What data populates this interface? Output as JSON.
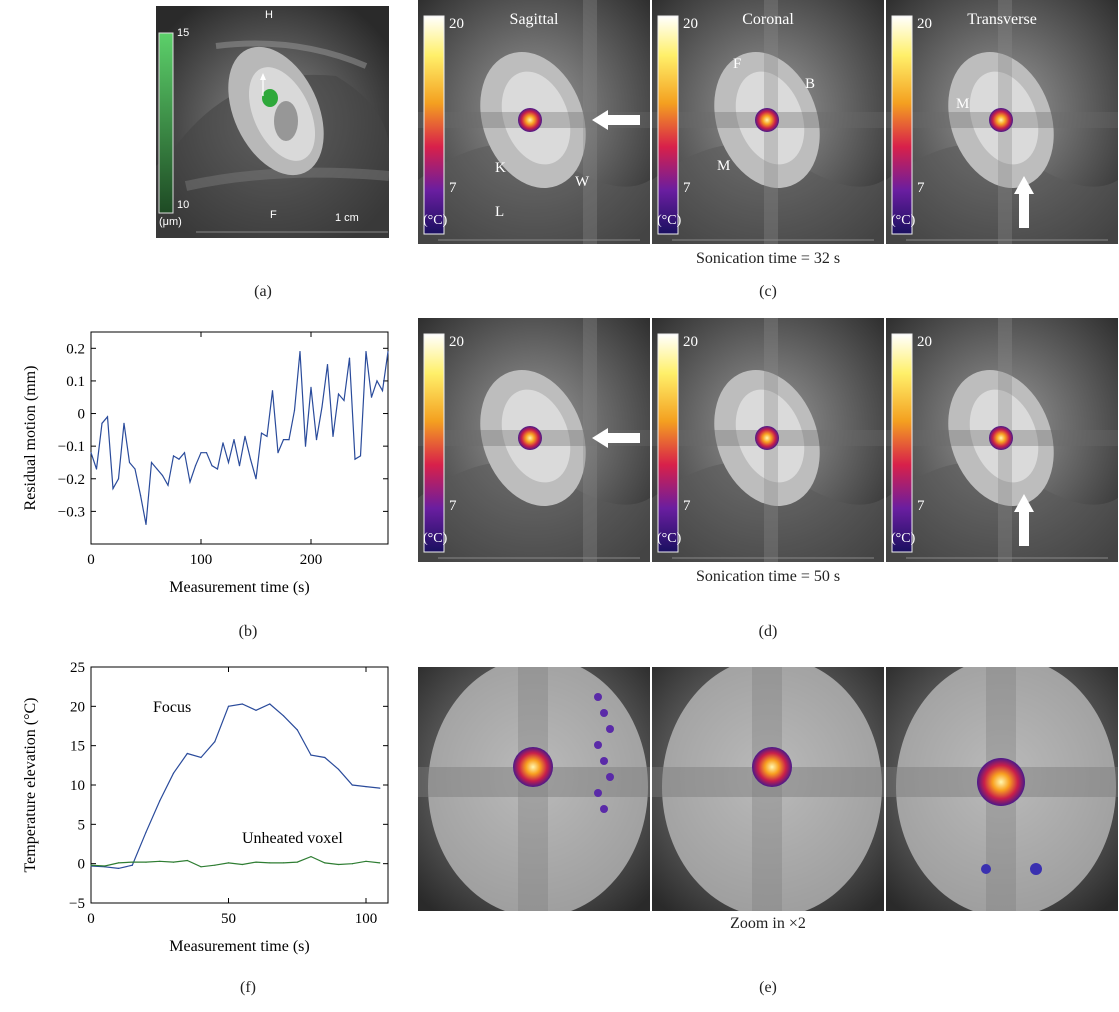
{
  "panel_a": {
    "label": "(a)",
    "top_marker": "H",
    "bottom_marker": "F",
    "scale_bar": "1 cm",
    "colorbar_max": "15",
    "colorbar_min": "10",
    "colorbar_unit": "(μm)",
    "colorbar_color": "#3fa64a"
  },
  "panel_c": {
    "label": "(c)",
    "caption": "Sonication time = 32 s",
    "views": [
      {
        "title": "Sagittal",
        "cb_max": "20",
        "cb_min": "7",
        "cb_unit": "(°C)",
        "letters": [
          "K",
          "W",
          "L"
        ]
      },
      {
        "title": "Coronal",
        "cb_max": "20",
        "cb_min": "7",
        "cb_unit": "(°C)",
        "letters": [
          "F",
          "B",
          "M"
        ]
      },
      {
        "title": "Transverse",
        "cb_max": "20",
        "cb_min": "7",
        "cb_unit": "(°C)",
        "letters": [
          "M"
        ]
      }
    ]
  },
  "panel_d": {
    "label": "(d)",
    "caption": "Sonication time = 50 s",
    "views": [
      {
        "cb_max": "20",
        "cb_min": "7",
        "cb_unit": "(°C)"
      },
      {
        "cb_max": "20",
        "cb_min": "7",
        "cb_unit": "(°C)"
      },
      {
        "cb_max": "20",
        "cb_min": "7",
        "cb_unit": "(°C)"
      }
    ]
  },
  "panel_e": {
    "label": "(e)",
    "caption": "Zoom in ×2"
  },
  "panel_b": {
    "label": "(b)"
  },
  "panel_f": {
    "label": "(f)"
  },
  "chart_data": [
    {
      "id": "b",
      "type": "line",
      "xlabel": "Measurement time (s)",
      "ylabel": "Residual motion (mm)",
      "xlim": [
        0,
        270
      ],
      "ylim": [
        -0.4,
        0.25
      ],
      "xticks": [
        0,
        100,
        200
      ],
      "yticks": [
        -0.3,
        -0.2,
        -0.1,
        0,
        0.1,
        0.2
      ],
      "line_color": "#2a4b9b",
      "series": [
        {
          "x": [
            0,
            5,
            10,
            15,
            20,
            25,
            30,
            35,
            40,
            45,
            50,
            55,
            60,
            65,
            70,
            75,
            80,
            85,
            90,
            95,
            100,
            105,
            110,
            115,
            120,
            125,
            130,
            135,
            140,
            145,
            150,
            155,
            160,
            165,
            170,
            175,
            180,
            185,
            190,
            195,
            200,
            205,
            210,
            215,
            220,
            225,
            230,
            235,
            240,
            245,
            250,
            255,
            260,
            265,
            270
          ],
          "y": [
            -0.12,
            -0.17,
            -0.03,
            -0.01,
            -0.23,
            -0.2,
            -0.03,
            -0.15,
            -0.17,
            -0.25,
            -0.34,
            -0.15,
            -0.17,
            -0.19,
            -0.22,
            -0.13,
            -0.14,
            -0.12,
            -0.21,
            -0.16,
            -0.12,
            -0.12,
            -0.16,
            -0.17,
            -0.09,
            -0.15,
            -0.08,
            -0.16,
            -0.07,
            -0.14,
            -0.2,
            -0.06,
            -0.07,
            0.07,
            -0.12,
            -0.08,
            -0.08,
            0.01,
            0.19,
            -0.1,
            0.08,
            -0.08,
            0.02,
            0.15,
            -0.07,
            0.06,
            0.04,
            0.17,
            -0.14,
            -0.13,
            0.19,
            0.05,
            0.1,
            0.07,
            0.19
          ]
        }
      ]
    },
    {
      "id": "f",
      "type": "line",
      "xlabel": "Measurement time (s)",
      "ylabel": "Temperature elevation (°C)",
      "xlim": [
        0,
        108
      ],
      "ylim": [
        -5,
        25
      ],
      "xticks": [
        0,
        50,
        100
      ],
      "yticks": [
        -5,
        0,
        5,
        10,
        15,
        20,
        25
      ],
      "series": [
        {
          "name": "Focus",
          "color": "#2a4b9b",
          "x": [
            0,
            5,
            10,
            15,
            20,
            25,
            30,
            35,
            40,
            45,
            50,
            55,
            60,
            65,
            70,
            75,
            80,
            85,
            90,
            95,
            100,
            105
          ],
          "y": [
            -0.3,
            -0.4,
            -0.6,
            -0.2,
            4,
            8,
            11.5,
            14,
            13.5,
            15.5,
            20,
            20.3,
            19.5,
            20.3,
            18.8,
            17,
            13.8,
            13.5,
            12,
            10,
            9.8,
            9.6
          ]
        },
        {
          "name": "Unheated voxel",
          "color": "#2e7d32",
          "x": [
            0,
            5,
            10,
            15,
            20,
            25,
            30,
            35,
            40,
            45,
            50,
            55,
            60,
            65,
            70,
            75,
            80,
            85,
            90,
            95,
            100,
            105
          ],
          "y": [
            -0.2,
            -0.3,
            0.1,
            0.2,
            0.2,
            0.3,
            0.2,
            0.4,
            -0.4,
            -0.2,
            0.1,
            -0.1,
            0.2,
            0.1,
            0.1,
            0.2,
            0.9,
            0.1,
            -0.1,
            0.0,
            0.3,
            0.1
          ]
        }
      ]
    }
  ]
}
